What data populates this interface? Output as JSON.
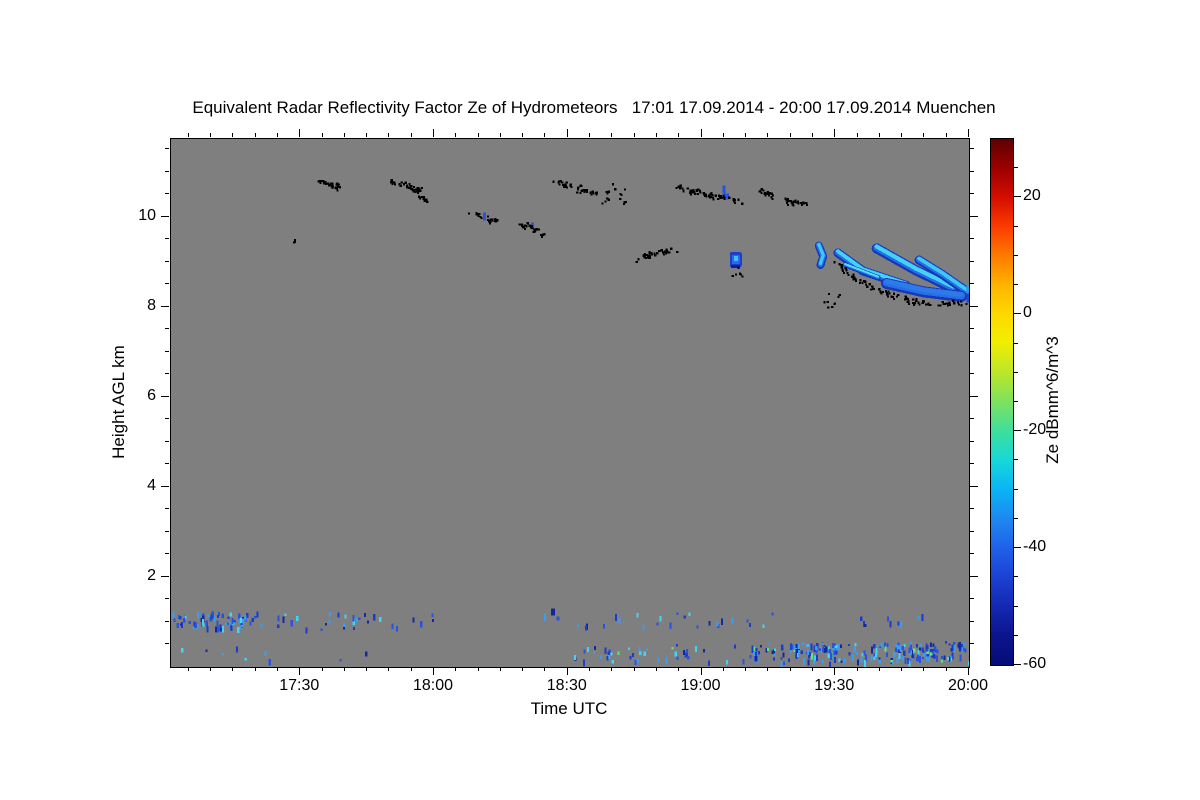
{
  "title": "Equivalent Radar Reflectivity Factor Ze of Hydrometeors   17:01 17.09.2014 - 20:00 17.09.2014 Muenchen",
  "axes": {
    "x_label": "Time UTC",
    "y_label": "Height AGL km",
    "x_major_ticks": [
      {
        "t": 30,
        "label": "17:30"
      },
      {
        "t": 60,
        "label": "18:00"
      },
      {
        "t": 90,
        "label": "18:30"
      },
      {
        "t": 120,
        "label": "19:00"
      },
      {
        "t": 150,
        "label": "19:30"
      },
      {
        "t": 180,
        "label": "20:00"
      }
    ],
    "x_minor_step_min": 5,
    "y_major_ticks": [
      2,
      4,
      6,
      8,
      10
    ],
    "y_minor_step_km": 0.5,
    "x_range_min_after_1700": [
      1,
      180
    ],
    "y_range_km": [
      0,
      11.73
    ]
  },
  "colorbar": {
    "label": "Ze dBmm^6/m^3",
    "range": [
      -60,
      30
    ],
    "major_ticks": [
      {
        "v": 20,
        "label": "20"
      },
      {
        "v": 0,
        "label": "0"
      },
      {
        "v": -20,
        "label": "-20"
      },
      {
        "v": -40,
        "label": "-40"
      },
      {
        "v": -60,
        "label": "-60"
      }
    ],
    "minor_step": 5,
    "stops": [
      [
        0.0,
        "#600000"
      ],
      [
        0.055,
        "#9b0000"
      ],
      [
        0.111,
        "#d40d00"
      ],
      [
        0.167,
        "#fb3c00"
      ],
      [
        0.222,
        "#ff7a00"
      ],
      [
        0.278,
        "#ffb400"
      ],
      [
        0.333,
        "#ffd800"
      ],
      [
        0.385,
        "#f2ee00"
      ],
      [
        0.444,
        "#bce62a"
      ],
      [
        0.5,
        "#7ce25e"
      ],
      [
        0.556,
        "#3ede9e"
      ],
      [
        0.611,
        "#16d8d8"
      ],
      [
        0.667,
        "#0ab4f6"
      ],
      [
        0.722,
        "#1d88f0"
      ],
      [
        0.778,
        "#2061ea"
      ],
      [
        0.833,
        "#1c41d4"
      ],
      [
        0.889,
        "#1428b2"
      ],
      [
        0.944,
        "#0c148e"
      ],
      [
        1.0,
        "#060c78"
      ]
    ]
  },
  "colors": {
    "plot_bg": "#7f7f7f",
    "page_bg": "#ffffff",
    "text": "#000000"
  },
  "chart_data": {
    "type": "heatmap",
    "title": "Equivalent Radar Reflectivity Factor Ze of Hydrometeors",
    "time_span": "17:01 17.09.2014 - 20:00 17.09.2014",
    "station": "Muenchen",
    "xlabel": "Time UTC",
    "ylabel": "Height AGL km",
    "x_ticks": [
      "17:30",
      "18:00",
      "18:30",
      "19:00",
      "19:30",
      "20:00"
    ],
    "y_ticks": [
      2,
      4,
      6,
      8,
      10
    ],
    "ylim_km": [
      0,
      11.73
    ],
    "colorbar_label": "Ze dBmm^6/m^3",
    "colorbar_ticks": [
      20,
      0,
      -20,
      -40,
      -60
    ],
    "value_range_dB": [
      -60,
      30
    ],
    "background": "no-echo gray",
    "features": [
      {
        "type": "cloud-boundary speckle (black)",
        "time_utc": [
          "17:28",
          "19:25"
        ],
        "height_km": [
          9.5,
          10.9
        ],
        "note": "broken cirrus layer fragments near 10-11 km"
      },
      {
        "type": "cloud line (black)",
        "time_utc": [
          "18:44",
          "18:56"
        ],
        "height_km": [
          9.0,
          9.3
        ]
      },
      {
        "type": "isolated cirrus pixels (blue)",
        "time_utc": [
          "18:11",
          "19:05"
        ],
        "height_km": [
          9.8,
          10.7
        ],
        "ze_dB": [
          -50,
          -45
        ]
      },
      {
        "type": "small echo cell",
        "time_utc": [
          "19:07",
          "19:10"
        ],
        "height_km": [
          8.9,
          9.25
        ],
        "ze_dB": [
          -50,
          -38
        ]
      },
      {
        "type": "fallstreak cirrus echo",
        "time_utc": [
          "19:26",
          "20:00"
        ],
        "height_km": [
          8.1,
          9.4
        ],
        "ze_dB": [
          -52,
          -30
        ],
        "note": "descending streaks with black cloud-base speckle along 8.1-8.2 km"
      },
      {
        "type": "boundary-layer echoes",
        "time_utc": [
          "17:01",
          "18:06"
        ],
        "height_km": [
          0.85,
          1.3
        ],
        "ze_dB": [
          -58,
          -40
        ]
      },
      {
        "type": "sparse echoes",
        "time_utc": [
          "18:25",
          "19:16"
        ],
        "height_km": [
          0.9,
          1.2
        ],
        "ze_dB": [
          -55,
          -42
        ]
      },
      {
        "type": "surface-layer echo band",
        "time_utc": [
          "18:32",
          "20:00"
        ],
        "height_km": [
          0.1,
          0.6
        ],
        "ze_dB": [
          -55,
          -35
        ]
      }
    ],
    "marks": {
      "black_lines": [
        {
          "pts": [
            [
              33.5,
              10.8
            ],
            [
              38.5,
              10.7
            ]
          ],
          "n": 26,
          "seed": 1
        },
        {
          "pts": [
            [
              49.8,
              10.8
            ],
            [
              54.0,
              10.72
            ],
            [
              57.0,
              10.6
            ]
          ],
          "n": 30,
          "seed": 2
        },
        {
          "pts": [
            [
              55.5,
              10.45
            ],
            [
              58.8,
              10.4
            ]
          ],
          "n": 9,
          "seed": 3
        },
        {
          "pts": [
            [
              67.8,
              10.1
            ],
            [
              74.0,
              9.92
            ]
          ],
          "n": 22,
          "seed": 4
        },
        {
          "pts": [
            [
              78.8,
              9.9
            ],
            [
              85.0,
              9.63
            ]
          ],
          "n": 22,
          "seed": 5
        },
        {
          "pts": [
            [
              86.8,
              10.8
            ],
            [
              92.5,
              10.68
            ]
          ],
          "n": 18,
          "seed": 6
        },
        {
          "pts": [
            [
              92.2,
              10.62
            ],
            [
              97.5,
              10.5
            ]
          ],
          "n": 15,
          "seed": 7
        },
        {
          "pts": [
            [
              114.5,
              10.68
            ],
            [
              121.0,
              10.52
            ],
            [
              128.8,
              10.35
            ]
          ],
          "n": 48,
          "seed": 8
        },
        {
          "pts": [
            [
              132.2,
              10.63
            ],
            [
              136.0,
              10.48
            ]
          ],
          "n": 13,
          "seed": 9
        },
        {
          "pts": [
            [
              138.3,
              10.38
            ],
            [
              144.0,
              10.32
            ]
          ],
          "n": 17,
          "seed": 10
        },
        {
          "pts": [
            [
              104.3,
              9.0
            ],
            [
              108.5,
              9.2
            ],
            [
              114.8,
              9.3
            ]
          ],
          "n": 30,
          "seed": 11
        },
        {
          "pts": [
            [
              149.7,
              9.05
            ],
            [
              154.7,
              8.62
            ],
            [
              160.3,
              8.36
            ],
            [
              165.9,
              8.18
            ],
            [
              171.5,
              8.09
            ],
            [
              176.0,
              8.12
            ],
            [
              179.8,
              8.08
            ]
          ],
          "n": 78,
          "seed": 12
        }
      ],
      "black_scatter": [
        {
          "t0": 28.0,
          "t1": 29.2,
          "h0": 9.42,
          "h1": 9.52,
          "n": 3,
          "seed": 21
        },
        {
          "t0": 97.5,
          "t1": 104.0,
          "h0": 10.3,
          "h1": 10.8,
          "n": 16,
          "seed": 22
        },
        {
          "t0": 126.5,
          "t1": 129.5,
          "h0": 8.7,
          "h1": 8.9,
          "n": 6,
          "seed": 23
        },
        {
          "t0": 147.0,
          "t1": 151.0,
          "h0": 7.98,
          "h1": 8.32,
          "n": 9,
          "seed": 24
        }
      ],
      "streaks": [
        {
          "pts": [
            [
              146.3,
              9.36
            ],
            [
              147.3,
              9.12
            ],
            [
              146.7,
              8.93
            ]
          ],
          "w": 8,
          "core": "#3fc8f0"
        },
        {
          "pts": [
            [
              150.6,
              9.2
            ],
            [
              156.2,
              8.8
            ],
            [
              165.9,
              8.48
            ]
          ],
          "w": 9,
          "core": "#46d2f2"
        },
        {
          "pts": [
            [
              152.2,
              8.93
            ],
            [
              159.6,
              8.65
            ]
          ],
          "w": 5,
          "core": "#55dcf4"
        },
        {
          "pts": [
            [
              159.3,
              9.3
            ],
            [
              168.1,
              8.81
            ],
            [
              176.4,
              8.41
            ]
          ],
          "w": 10,
          "core": "#46d2f2"
        },
        {
          "pts": [
            [
              168.8,
              9.04
            ],
            [
              174.0,
              8.72
            ],
            [
              179.4,
              8.35
            ]
          ],
          "w": 9,
          "core": "#3fc8f0"
        },
        {
          "pts": [
            [
              161.5,
              8.52
            ],
            [
              170.0,
              8.33
            ],
            [
              178.3,
              8.23
            ]
          ],
          "w": 11,
          "core": "#2e7ae8"
        }
      ],
      "blobs": [
        {
          "t": 127.7,
          "h": 9.04
        }
      ],
      "dashes": [
        [
          71.0,
          10.1,
          3,
          8,
          "#2a52e0"
        ],
        [
          81.8,
          9.88,
          3,
          7,
          "#2a52e0"
        ],
        [
          124.7,
          10.7,
          3,
          8,
          "#2553e8"
        ],
        [
          125.0,
          10.52,
          5,
          6,
          "#2553e8"
        ],
        [
          86.2,
          1.3,
          4,
          7,
          "#16249c"
        ],
        [
          87.5,
          1.12,
          3,
          4,
          "#2a52e0"
        ],
        [
          179.4,
          8.5,
          7,
          9,
          "#2f94e8"
        ],
        [
          179.4,
          8.3,
          7,
          9,
          "#1d45d4"
        ]
      ],
      "clusters": [
        {
          "t0": 1.0,
          "t1": 4.0,
          "h0": 0.95,
          "h1": 1.2,
          "n": 8,
          "seed": 111,
          "pal": "b"
        },
        {
          "t0": 1.0,
          "t1": 66.0,
          "h0": 0.86,
          "h1": 1.24,
          "n": 48,
          "seed": 101,
          "pal": "b"
        },
        {
          "t0": 5.5,
          "t1": 18.5,
          "h0": 0.88,
          "h1": 1.26,
          "n": 50,
          "seed": 102,
          "pal": "b"
        },
        {
          "t0": 1.0,
          "t1": 52.0,
          "h0": 0.12,
          "h1": 0.48,
          "n": 9,
          "seed": 103,
          "pal": "b"
        },
        {
          "t0": 84.0,
          "t1": 136.0,
          "h0": 0.92,
          "h1": 1.22,
          "n": 26,
          "seed": 104,
          "pal": "b"
        },
        {
          "t0": 154.0,
          "t1": 171.0,
          "h0": 0.95,
          "h1": 1.18,
          "n": 9,
          "seed": 105,
          "pal": "b"
        },
        {
          "t0": 91.0,
          "t1": 130.0,
          "h0": 0.14,
          "h1": 0.52,
          "n": 42,
          "seed": 106,
          "pal": "g"
        },
        {
          "t0": 130.0,
          "t1": 158.0,
          "h0": 0.12,
          "h1": 0.55,
          "n": 80,
          "seed": 107,
          "pal": "g"
        },
        {
          "t0": 158.0,
          "t1": 180.0,
          "h0": 0.12,
          "h1": 0.58,
          "n": 85,
          "seed": 108,
          "pal": "g"
        },
        {
          "t0": 139.0,
          "t1": 152.0,
          "h0": 0.3,
          "h1": 0.55,
          "n": 30,
          "seed": 109,
          "pal": "g"
        },
        {
          "t0": 163.0,
          "t1": 172.0,
          "h0": 0.25,
          "h1": 0.5,
          "n": 25,
          "seed": 110,
          "pal": "g"
        }
      ],
      "palettes": {
        "b": [
          "#2a52e0",
          "#1b3bc8",
          "#3b9cf0",
          "#45d4f0",
          "#16289e",
          "#2a52e0",
          "#3b9cf0",
          "#1b3bc8"
        ],
        "g": [
          "#2a52e0",
          "#1b3bc8",
          "#3b9cf0",
          "#45d4f0",
          "#16289e",
          "#2a52e0",
          "#3b9cf0",
          "#1b3bc8"
        ]
      }
    }
  }
}
